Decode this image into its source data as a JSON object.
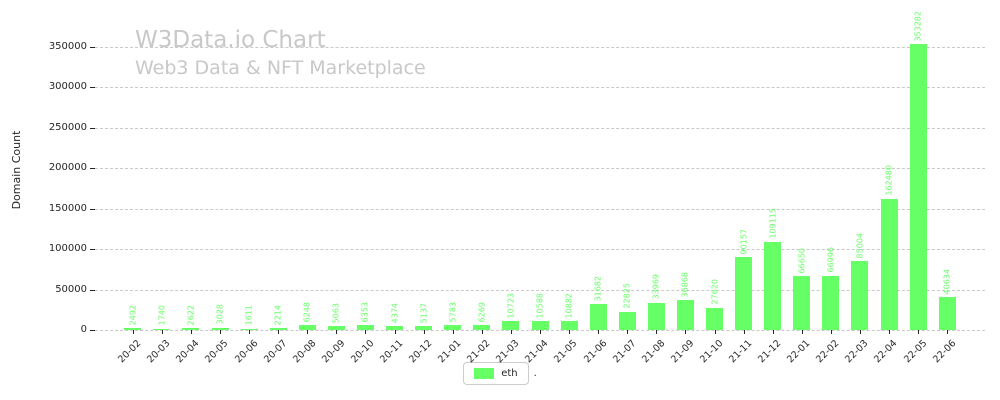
{
  "colors": {
    "bar": "#66ff66",
    "grid": "#c9c9c9",
    "text": "#262626",
    "watermark": "#c8c8c8",
    "background": "#ffffff"
  },
  "chart_data": {
    "type": "bar",
    "title": "W3Data.io Chart",
    "subtitle": "Web3 Data & NFT Marketplace",
    "xlabel": "",
    "ylabel": "Domain Count",
    "ylim": [
      0,
      395000
    ],
    "yticks": [
      0,
      50000,
      100000,
      150000,
      200000,
      250000,
      300000,
      350000
    ],
    "grid": "horizontal-dashed",
    "value_labels": "rotated-90-above-bars",
    "legend": {
      "label": "eth",
      "position": "lower center"
    },
    "caption": ".",
    "categories": [
      "20-02",
      "20-03",
      "20-04",
      "20-05",
      "20-06",
      "20-07",
      "20-08",
      "20-09",
      "20-10",
      "20-11",
      "20-12",
      "21-01",
      "21-02",
      "21-03",
      "21-04",
      "21-05",
      "21-06",
      "21-07",
      "21-08",
      "21-09",
      "21-10",
      "21-11",
      "21-12",
      "22-01",
      "22-02",
      "22-03",
      "22-04",
      "22-05",
      "22-06"
    ],
    "values": [
      2492,
      1740,
      2622,
      3028,
      1611,
      2214,
      6248,
      5063,
      6353,
      4374,
      5137,
      5783,
      6269,
      10723,
      10588,
      10882,
      31682,
      22825,
      33969,
      36868,
      27620,
      90157,
      109115,
      66650,
      66996,
      85004,
      162480,
      353282,
      40634
    ]
  }
}
